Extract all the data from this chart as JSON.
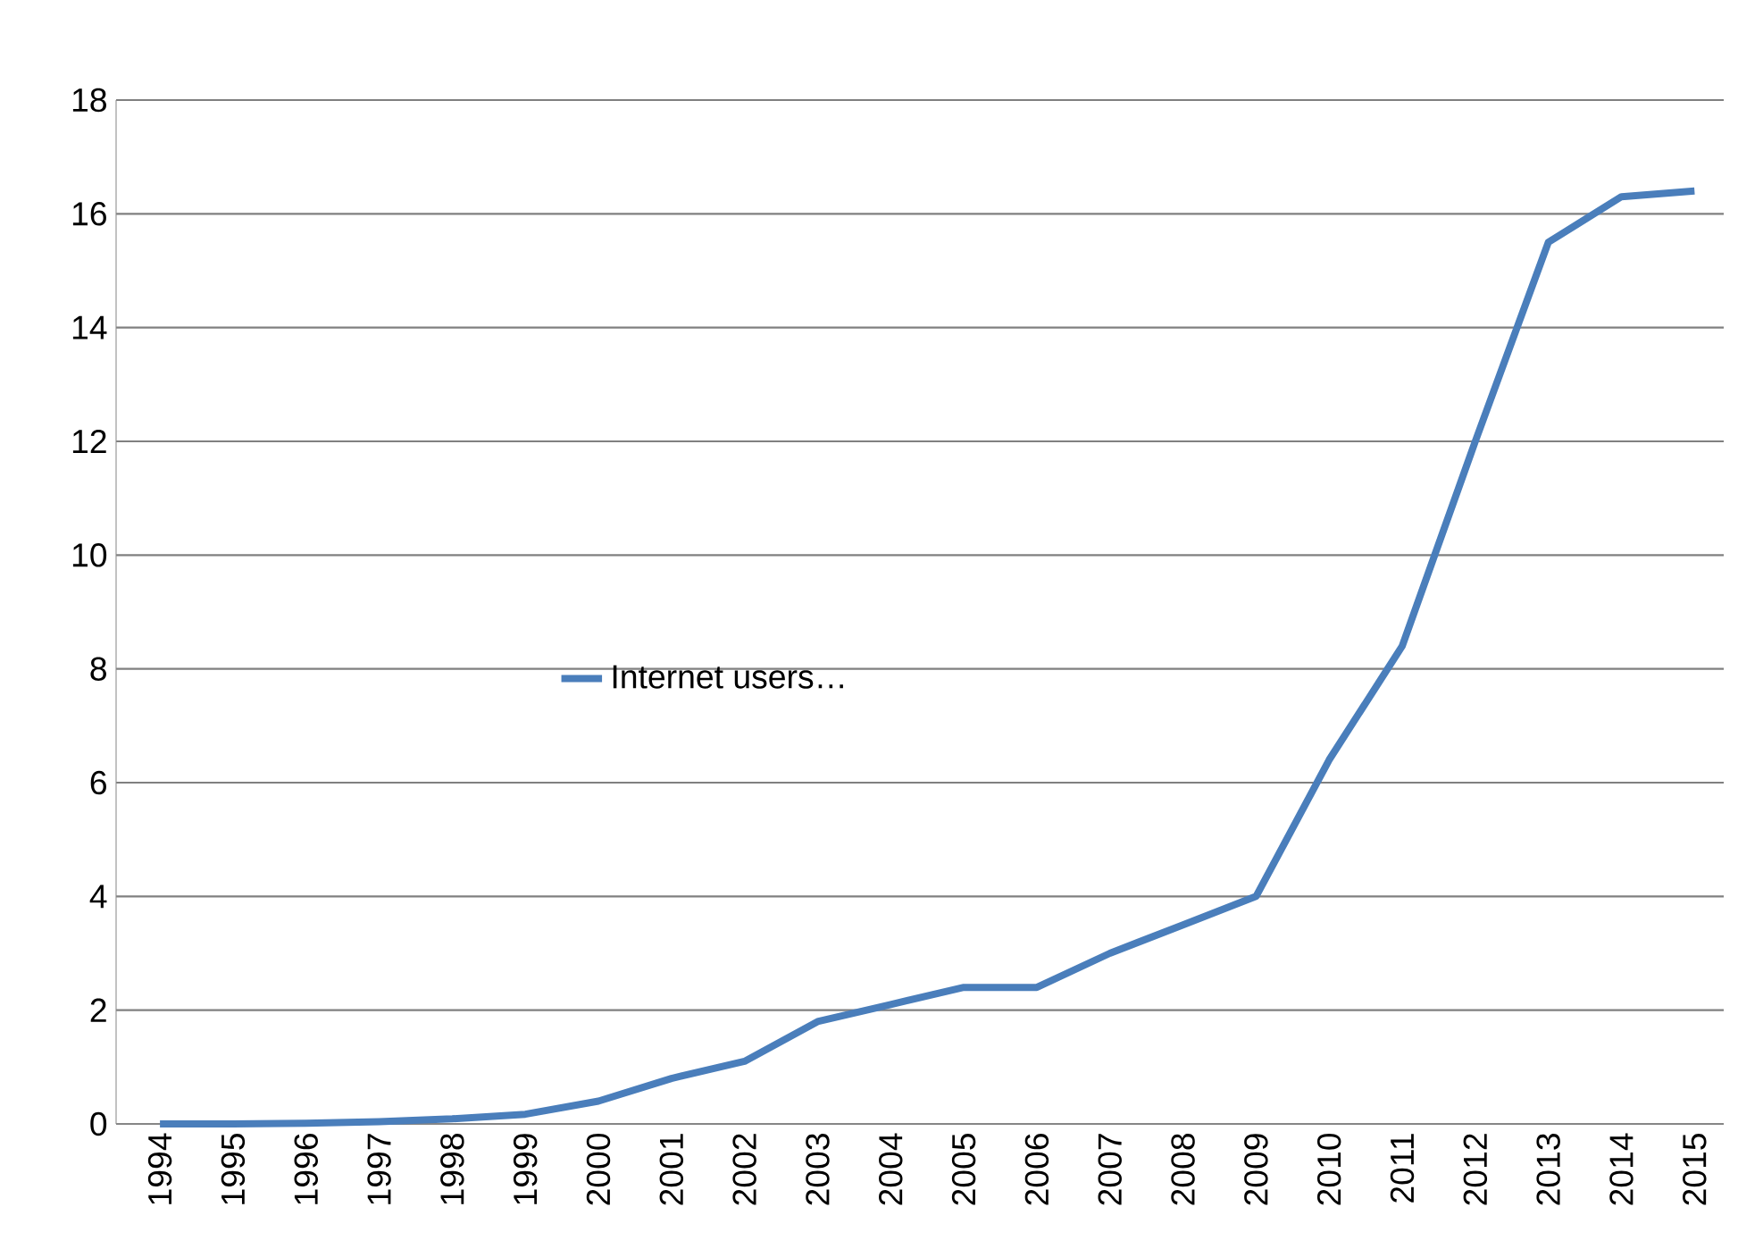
{
  "chart_data": {
    "type": "line",
    "categories": [
      "1994",
      "1995",
      "1996",
      "1997",
      "1998",
      "1999",
      "2000",
      "2001",
      "2002",
      "2003",
      "2004",
      "2005",
      "2006",
      "2007",
      "2008",
      "2009",
      "2010",
      "2011",
      "2012",
      "2013",
      "2014",
      "2015"
    ],
    "series": [
      {
        "name": "Internet users…",
        "color": "#4a7ebb",
        "values": [
          0,
          0,
          0.01,
          0.04,
          0.09,
          0.17,
          0.4,
          0.8,
          1.1,
          1.8,
          2.1,
          2.4,
          2.4,
          3.0,
          3.5,
          4.0,
          6.4,
          8.4,
          12.0,
          15.5,
          16.3,
          16.4
        ]
      }
    ],
    "ylim": [
      0,
      18
    ],
    "yticks": [
      0,
      2,
      4,
      6,
      8,
      10,
      12,
      14,
      16,
      18
    ],
    "grid": "y",
    "legend": "center",
    "marker": "none",
    "line_style": "solid"
  }
}
